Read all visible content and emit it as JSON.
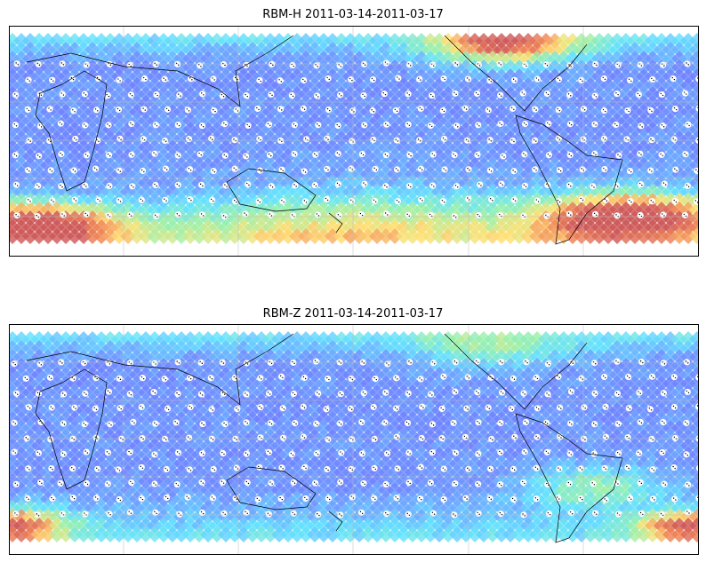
{
  "panels": [
    {
      "title": "RBM-H 2011-03-14-2011-03-17"
    },
    {
      "title": "RBM-Z 2011-03-14-2011-03-17"
    }
  ]
}
